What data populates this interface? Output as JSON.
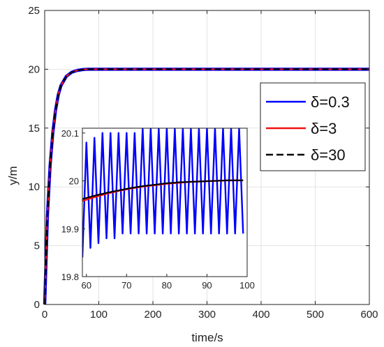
{
  "chart_data": [
    {
      "type": "line",
      "xlabel": "time/s",
      "ylabel": "y/m",
      "xlim": [
        0,
        600
      ],
      "ylim": [
        0,
        25
      ],
      "xticks": [
        0,
        100,
        200,
        300,
        400,
        500,
        600
      ],
      "yticks": [
        0,
        5,
        10,
        15,
        20,
        25
      ],
      "grid": true,
      "legend_position": "right",
      "legend": [
        "δ=0.3",
        "δ=3",
        "δ=30"
      ],
      "series": [
        {
          "name": "δ=0.3",
          "color": "#0000ff",
          "style": "solid",
          "x": [
            0,
            5,
            10,
            15,
            20,
            25,
            30,
            40,
            50,
            60,
            70,
            80,
            100,
            150,
            200,
            300,
            400,
            500,
            600
          ],
          "y": [
            0,
            7.5,
            11.8,
            14.6,
            16.5,
            17.8,
            18.6,
            19.4,
            19.75,
            19.9,
            19.97,
            20.0,
            20.0,
            20.0,
            20.0,
            20.0,
            20.0,
            20.0,
            20.0
          ]
        },
        {
          "name": "δ=3",
          "color": "#ee1111",
          "style": "solid",
          "x": [
            0,
            5,
            10,
            15,
            20,
            25,
            30,
            40,
            50,
            60,
            70,
            80,
            100,
            150,
            200,
            300,
            400,
            500,
            600
          ],
          "y": [
            0,
            7.5,
            11.8,
            14.6,
            16.5,
            17.8,
            18.6,
            19.4,
            19.75,
            19.9,
            19.97,
            20.0,
            20.0,
            20.0,
            20.0,
            20.0,
            20.0,
            20.0,
            20.0
          ]
        },
        {
          "name": "δ=30",
          "color": "#000000",
          "style": "dashed",
          "x": [
            0,
            5,
            10,
            15,
            20,
            25,
            30,
            40,
            50,
            60,
            70,
            80,
            100,
            150,
            200,
            300,
            400,
            500,
            600
          ],
          "y": [
            0,
            7.5,
            11.8,
            14.6,
            16.5,
            17.8,
            18.6,
            19.4,
            19.75,
            19.9,
            19.97,
            20.0,
            20.0,
            20.0,
            20.0,
            20.0,
            20.0,
            20.0,
            20.0
          ]
        }
      ]
    },
    {
      "type": "line",
      "inset": true,
      "xlim": [
        59,
        100
      ],
      "ylim": [
        19.8,
        20.11
      ],
      "xticks": [
        60,
        70,
        80,
        90,
        100
      ],
      "yticks": [
        19.8,
        19.9,
        20,
        20.1
      ],
      "grid": false,
      "series": [
        {
          "name": "δ=0.3",
          "color": "#0000ff",
          "style": "solid",
          "x": [
            59,
            60,
            61,
            62,
            63,
            64,
            65,
            66,
            67,
            68,
            69,
            70,
            71,
            72,
            73,
            74,
            75,
            76,
            77,
            78,
            79,
            80,
            81,
            82,
            83,
            84,
            85,
            86,
            87,
            88,
            89,
            90,
            91,
            92,
            93,
            94,
            95,
            96,
            97,
            98,
            99
          ],
          "y": [
            19.84,
            20.08,
            19.86,
            20.09,
            19.87,
            20.1,
            19.88,
            20.1,
            19.88,
            20.1,
            19.89,
            20.1,
            19.89,
            20.1,
            19.89,
            20.11,
            19.89,
            20.11,
            19.89,
            20.11,
            19.89,
            20.11,
            19.89,
            20.11,
            19.89,
            20.11,
            19.89,
            20.11,
            19.89,
            20.11,
            19.89,
            20.11,
            19.89,
            20.11,
            19.89,
            20.11,
            19.89,
            20.11,
            19.89,
            20.11,
            19.89
          ]
        },
        {
          "name": "δ=3",
          "color": "#ee1111",
          "style": "solid",
          "x": [
            59,
            62,
            65,
            68,
            71,
            74,
            77,
            80,
            83,
            86,
            89,
            92,
            95,
            99
          ],
          "y": [
            19.958,
            19.966,
            19.973,
            19.979,
            19.984,
            19.988,
            19.991,
            19.994,
            19.996,
            19.998,
            19.999,
            20.0,
            20.001,
            20.001
          ]
        },
        {
          "name": "δ=30",
          "color": "#000000",
          "style": "solid",
          "x": [
            59,
            62,
            65,
            68,
            71,
            74,
            77,
            80,
            83,
            86,
            89,
            92,
            95,
            99
          ],
          "y": [
            19.962,
            19.969,
            19.975,
            19.98,
            19.985,
            19.989,
            19.992,
            19.995,
            19.997,
            19.998,
            19.999,
            20.0,
            20.001,
            20.001
          ]
        }
      ]
    }
  ]
}
